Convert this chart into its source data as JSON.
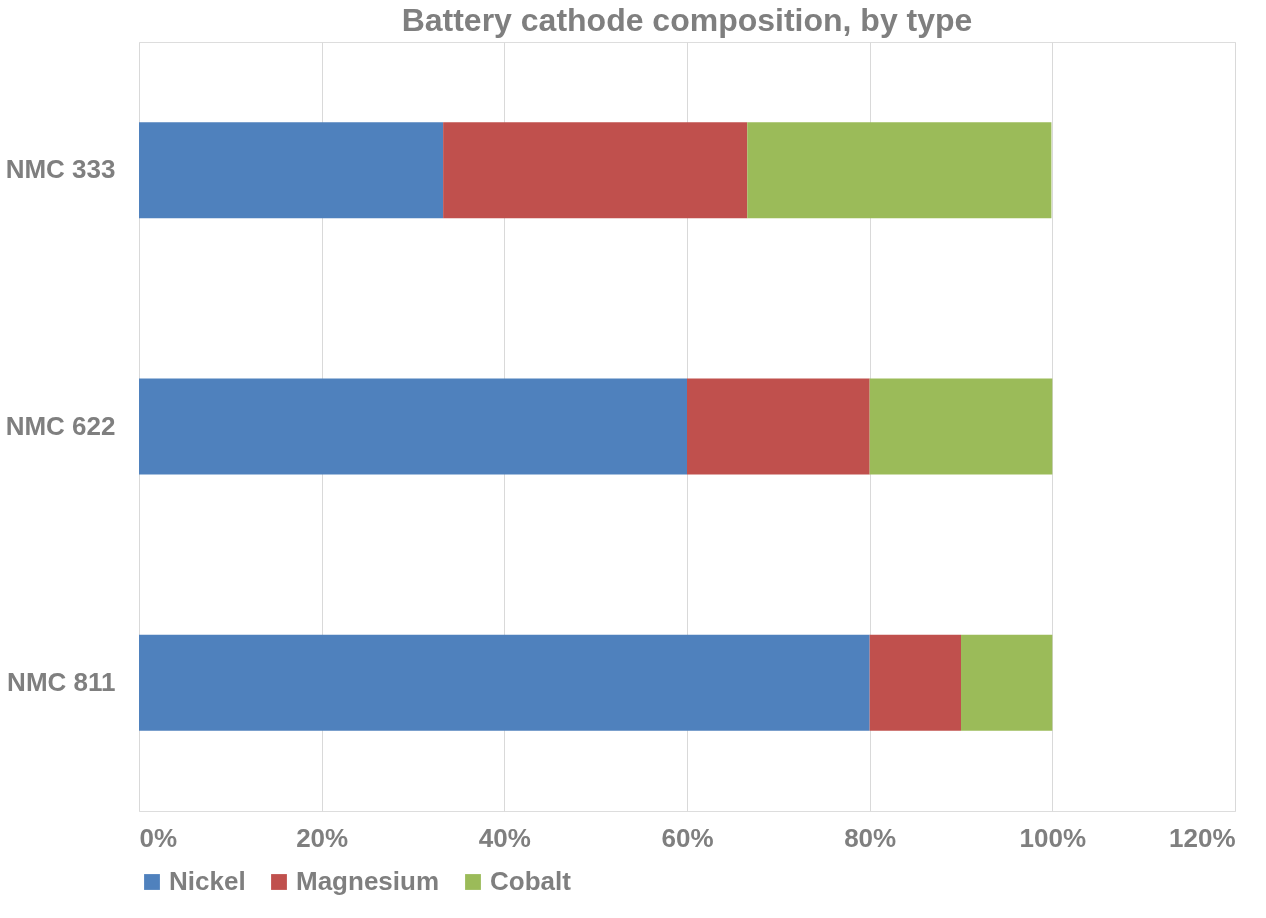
{
  "chart_data": {
    "type": "bar",
    "title": "Battery cathode composition, by type",
    "orientation": "horizontal",
    "stacked": true,
    "categories": [
      "NMC 333",
      "NMC 622",
      "NMC 811"
    ],
    "series": [
      {
        "name": "Nickel",
        "color": "#4f81bd",
        "values": [
          33.3,
          60,
          80
        ]
      },
      {
        "name": "Magnesium",
        "color": "#c0504d",
        "values": [
          33.3,
          20,
          10
        ]
      },
      {
        "name": "Cobalt",
        "color": "#9bbb59",
        "values": [
          33.3,
          20,
          10
        ]
      }
    ],
    "xlim": [
      0,
      120
    ],
    "xticks": [
      {
        "value": 0,
        "label": "0%"
      },
      {
        "value": 20,
        "label": "20%"
      },
      {
        "value": 40,
        "label": "40%"
      },
      {
        "value": 60,
        "label": "60%"
      },
      {
        "value": 80,
        "label": "80%"
      },
      {
        "value": 100,
        "label": "100%"
      },
      {
        "value": 120,
        "label": "120%"
      }
    ],
    "grid": "x",
    "legend": "bottom"
  }
}
